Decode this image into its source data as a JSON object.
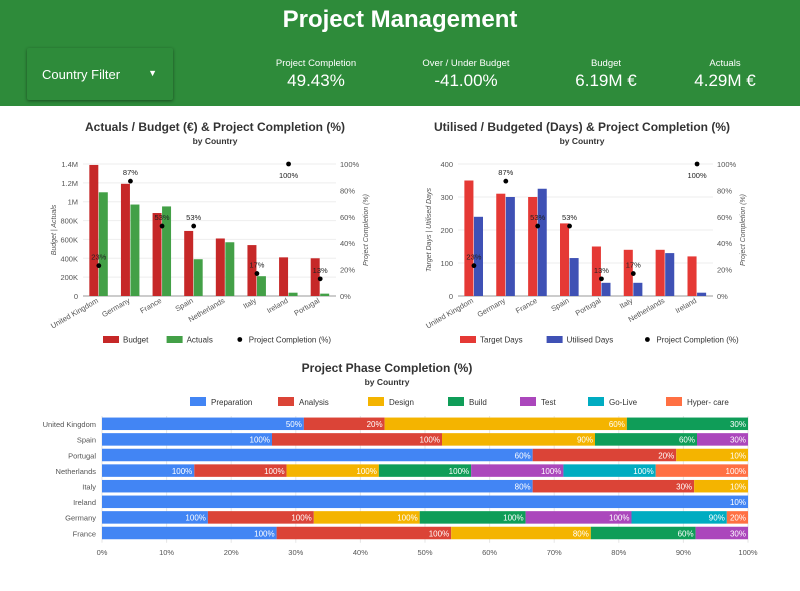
{
  "header": {
    "title": "Project Management",
    "filter_label": "Country Filter",
    "kpis": [
      {
        "label": "Project Completion",
        "value": "49.43%"
      },
      {
        "label": "Over / Under Budget",
        "value": "-41.00%"
      },
      {
        "label": "Budget",
        "value": "6.19M €"
      },
      {
        "label": "Actuals",
        "value": "4.29M €"
      }
    ]
  },
  "chart_data": [
    {
      "type": "bar",
      "title": "Actuals / Budget (€) & Project Completion (%)",
      "subtitle": "by Country",
      "ylabel": "Budget | Actuals",
      "y2label": "Project Completion (%)",
      "ylim": [
        0,
        1400000
      ],
      "y2lim": [
        0,
        100
      ],
      "yticks": [
        "0",
        "200K",
        "400K",
        "600K",
        "800K",
        "1M",
        "1.2M",
        "1.4M"
      ],
      "y2ticks": [
        "0%",
        "20%",
        "40%",
        "60%",
        "80%",
        "100%"
      ],
      "categories": [
        "United Kingdom",
        "Germany",
        "France",
        "Spain",
        "Netherlands",
        "Italy",
        "Ireland",
        "Portugal"
      ],
      "series": [
        {
          "name": "Budget",
          "kind": "bar",
          "axis": "left",
          "color": "#c62828",
          "values": [
            1390000,
            1190000,
            880000,
            690000,
            610000,
            540000,
            410000,
            400000
          ]
        },
        {
          "name": "Actuals",
          "kind": "bar",
          "axis": "left",
          "color": "#43a047",
          "values": [
            1100000,
            970000,
            950000,
            390000,
            570000,
            210000,
            35000,
            25000
          ]
        },
        {
          "name": "Project Completion (%)",
          "kind": "point",
          "axis": "right",
          "color": "#000000",
          "values": [
            23,
            87,
            53,
            53,
            null,
            17,
            100,
            13
          ],
          "labels": [
            "23%",
            "87%",
            "53%",
            "53%",
            "",
            "17%",
            "100%",
            "13%"
          ]
        }
      ],
      "legend": "bottom"
    },
    {
      "type": "bar",
      "title": "Utilised / Budgeted (Days) & Project Completion (%)",
      "subtitle": "by Country",
      "ylabel": "Target Days | Utilised Days",
      "y2label": "Project Completion (%)",
      "ylim": [
        0,
        400
      ],
      "y2lim": [
        0,
        100
      ],
      "yticks": [
        "0",
        "100",
        "200",
        "300",
        "400"
      ],
      "y2ticks": [
        "0%",
        "20%",
        "40%",
        "60%",
        "80%",
        "100%"
      ],
      "categories": [
        "United Kingdom",
        "Germany",
        "France",
        "Spain",
        "Portugal",
        "Italy",
        "Netherlands",
        "Ireland"
      ],
      "series": [
        {
          "name": "Target Days",
          "kind": "bar",
          "axis": "left",
          "color": "#e53935",
          "values": [
            350,
            310,
            300,
            220,
            150,
            140,
            140,
            120
          ]
        },
        {
          "name": "Utilised Days",
          "kind": "bar",
          "axis": "left",
          "color": "#3f51b5",
          "values": [
            240,
            300,
            325,
            115,
            40,
            40,
            130,
            10
          ]
        },
        {
          "name": "Project Completion (%)",
          "kind": "point",
          "axis": "right",
          "color": "#000000",
          "values": [
            23,
            87,
            53,
            53,
            13,
            17,
            null,
            100
          ],
          "labels": [
            "23%",
            "87%",
            "53%",
            "53%",
            "13%",
            "17%",
            "",
            "100%"
          ]
        }
      ],
      "legend": "bottom"
    },
    {
      "type": "bar",
      "orientation": "horizontal-stacked",
      "title": "Project Phase Completion (%)",
      "subtitle": "by Country",
      "xlim": [
        0,
        100
      ],
      "xticks": [
        "0%",
        "10%",
        "20%",
        "30%",
        "40%",
        "50%",
        "60%",
        "70%",
        "80%",
        "90%",
        "100%"
      ],
      "categories": [
        "United Kingdom",
        "Spain",
        "Portugal",
        "Netherlands",
        "Italy",
        "Ireland",
        "Germany",
        "France"
      ],
      "phases": [
        {
          "name": "Preparation",
          "color": "#4285f4"
        },
        {
          "name": "Analysis",
          "color": "#db4437"
        },
        {
          "name": "Design",
          "color": "#f4b400"
        },
        {
          "name": "Build",
          "color": "#0f9d58"
        },
        {
          "name": "Test",
          "color": "#ab47bc"
        },
        {
          "name": "Go-Live",
          "color": "#00acc1"
        },
        {
          "name": "Hyper- care",
          "color": "#ff7043"
        }
      ],
      "rows": [
        [
          50,
          20,
          60,
          30,
          0,
          0,
          0
        ],
        [
          100,
          100,
          90,
          60,
          30,
          0,
          0
        ],
        [
          60,
          20,
          10,
          0,
          0,
          0,
          0
        ],
        [
          100,
          100,
          100,
          100,
          100,
          100,
          100
        ],
        [
          80,
          30,
          10,
          0,
          0,
          0,
          0
        ],
        [
          10,
          0,
          0,
          0,
          0,
          0,
          0
        ],
        [
          100,
          100,
          100,
          100,
          100,
          90,
          20
        ],
        [
          100,
          100,
          80,
          60,
          30,
          0,
          0
        ]
      ],
      "legend": "top"
    }
  ]
}
